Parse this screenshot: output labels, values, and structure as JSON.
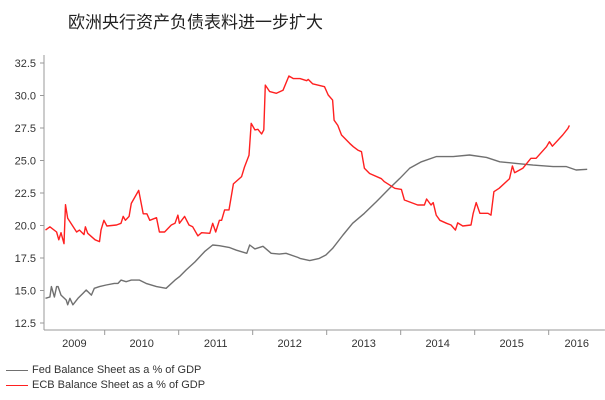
{
  "chart_data": {
    "type": "line",
    "title": "欧洲央行资产负债表料进一步扩大",
    "xlabel": "",
    "ylabel": "",
    "xlim": [
      2009.18,
      2016.76
    ],
    "ylim": [
      12.5,
      32.5
    ],
    "y_ticks": [
      "12.5",
      "15.0",
      "17.5",
      "20.0",
      "22.5",
      "25.0",
      "27.5",
      "30.0",
      "32.5"
    ],
    "x_tick_labels": [
      "2009",
      "2010",
      "2011",
      "2012",
      "2013",
      "2014",
      "2015",
      "2016"
    ],
    "grid": false,
    "legend_position": "bottom-left",
    "series": [
      {
        "name": "Fed Balance Sheet as a % of GDP",
        "color": "#707070",
        "points": [
          [
            2009.2,
            14.4
          ],
          [
            2009.26,
            14.5
          ],
          [
            2009.28,
            15.3
          ],
          [
            2009.32,
            14.5
          ],
          [
            2009.35,
            15.3
          ],
          [
            2009.37,
            15.3
          ],
          [
            2009.41,
            14.65
          ],
          [
            2009.48,
            14.27
          ],
          [
            2009.5,
            13.9
          ],
          [
            2009.53,
            14.4
          ],
          [
            2009.57,
            13.9
          ],
          [
            2009.64,
            14.4
          ],
          [
            2009.71,
            14.8
          ],
          [
            2009.75,
            15.04
          ],
          [
            2009.82,
            14.65
          ],
          [
            2009.86,
            15.17
          ],
          [
            2009.93,
            15.3
          ],
          [
            2010.02,
            15.42
          ],
          [
            2010.13,
            15.55
          ],
          [
            2010.18,
            15.55
          ],
          [
            2010.22,
            15.8
          ],
          [
            2010.29,
            15.68
          ],
          [
            2010.36,
            15.8
          ],
          [
            2010.47,
            15.8
          ],
          [
            2010.56,
            15.55
          ],
          [
            2010.7,
            15.3
          ],
          [
            2010.83,
            15.17
          ],
          [
            2010.95,
            15.8
          ],
          [
            2011.01,
            16.06
          ],
          [
            2011.1,
            16.58
          ],
          [
            2011.22,
            17.2
          ],
          [
            2011.35,
            17.99
          ],
          [
            2011.46,
            18.5
          ],
          [
            2011.55,
            18.45
          ],
          [
            2011.69,
            18.3
          ],
          [
            2011.78,
            18.1
          ],
          [
            2011.92,
            17.86
          ],
          [
            2011.96,
            18.5
          ],
          [
            2012.03,
            18.2
          ],
          [
            2012.14,
            18.4
          ],
          [
            2012.25,
            17.86
          ],
          [
            2012.36,
            17.8
          ],
          [
            2012.45,
            17.86
          ],
          [
            2012.61,
            17.55
          ],
          [
            2012.64,
            17.47
          ],
          [
            2012.77,
            17.3
          ],
          [
            2012.9,
            17.47
          ],
          [
            2012.99,
            17.73
          ],
          [
            2013.08,
            18.24
          ],
          [
            2013.22,
            19.27
          ],
          [
            2013.35,
            20.17
          ],
          [
            2013.51,
            20.94
          ],
          [
            2013.67,
            21.83
          ],
          [
            2013.85,
            22.86
          ],
          [
            2013.99,
            23.63
          ],
          [
            2014.12,
            24.4
          ],
          [
            2014.28,
            24.9
          ],
          [
            2014.48,
            25.3
          ],
          [
            2014.71,
            25.3
          ],
          [
            2014.93,
            25.42
          ],
          [
            2015.16,
            25.24
          ],
          [
            2015.34,
            24.9
          ],
          [
            2015.56,
            24.78
          ],
          [
            2015.79,
            24.65
          ],
          [
            2016.06,
            24.53
          ],
          [
            2016.24,
            24.53
          ],
          [
            2016.37,
            24.27
          ],
          [
            2016.52,
            24.32
          ]
        ]
      },
      {
        "name": "ECB Balance Sheet as a % of GDP",
        "color": "#ff2020",
        "points": [
          [
            2009.2,
            19.65
          ],
          [
            2009.26,
            19.9
          ],
          [
            2009.35,
            19.5
          ],
          [
            2009.38,
            18.9
          ],
          [
            2009.41,
            19.45
          ],
          [
            2009.45,
            18.6
          ],
          [
            2009.47,
            21.6
          ],
          [
            2009.5,
            20.55
          ],
          [
            2009.62,
            19.5
          ],
          [
            2009.66,
            19.65
          ],
          [
            2009.72,
            19.3
          ],
          [
            2009.74,
            19.9
          ],
          [
            2009.77,
            19.4
          ],
          [
            2009.87,
            18.9
          ],
          [
            2009.93,
            18.76
          ],
          [
            2009.95,
            19.65
          ],
          [
            2009.99,
            20.4
          ],
          [
            2010.03,
            19.96
          ],
          [
            2010.16,
            20.04
          ],
          [
            2010.22,
            20.17
          ],
          [
            2010.25,
            20.7
          ],
          [
            2010.28,
            20.4
          ],
          [
            2010.33,
            20.7
          ],
          [
            2010.36,
            21.7
          ],
          [
            2010.46,
            22.7
          ],
          [
            2010.52,
            20.9
          ],
          [
            2010.57,
            20.9
          ],
          [
            2010.61,
            20.4
          ],
          [
            2010.7,
            20.6
          ],
          [
            2010.74,
            19.5
          ],
          [
            2010.81,
            19.5
          ],
          [
            2010.9,
            20.04
          ],
          [
            2010.95,
            20.17
          ],
          [
            2010.99,
            20.8
          ],
          [
            2011.01,
            20.17
          ],
          [
            2011.08,
            20.7
          ],
          [
            2011.14,
            20.04
          ],
          [
            2011.19,
            19.9
          ],
          [
            2011.26,
            19.2
          ],
          [
            2011.31,
            19.45
          ],
          [
            2011.42,
            19.4
          ],
          [
            2011.46,
            20.17
          ],
          [
            2011.5,
            19.5
          ],
          [
            2011.55,
            20.4
          ],
          [
            2011.58,
            20.4
          ],
          [
            2011.62,
            21.2
          ],
          [
            2011.68,
            21.2
          ],
          [
            2011.74,
            23.2
          ],
          [
            2011.85,
            23.76
          ],
          [
            2011.89,
            24.5
          ],
          [
            2011.95,
            25.4
          ],
          [
            2011.98,
            27.86
          ],
          [
            2012.03,
            27.35
          ],
          [
            2012.07,
            27.4
          ],
          [
            2012.12,
            27.04
          ],
          [
            2012.15,
            27.35
          ],
          [
            2012.17,
            30.8
          ],
          [
            2012.23,
            30.3
          ],
          [
            2012.32,
            30.17
          ],
          [
            2012.41,
            30.4
          ],
          [
            2012.49,
            31.5
          ],
          [
            2012.55,
            31.3
          ],
          [
            2012.64,
            31.3
          ],
          [
            2012.73,
            31.14
          ],
          [
            2012.75,
            31.24
          ],
          [
            2012.81,
            30.9
          ],
          [
            2012.97,
            30.68
          ],
          [
            2013.02,
            30.04
          ],
          [
            2013.08,
            29.65
          ],
          [
            2013.1,
            28.1
          ],
          [
            2013.15,
            27.7
          ],
          [
            2013.2,
            26.96
          ],
          [
            2013.31,
            26.32
          ],
          [
            2013.36,
            26.06
          ],
          [
            2013.42,
            25.8
          ],
          [
            2013.47,
            25.68
          ],
          [
            2013.51,
            24.4
          ],
          [
            2013.58,
            24.0
          ],
          [
            2013.74,
            23.6
          ],
          [
            2013.78,
            23.37
          ],
          [
            2013.92,
            22.86
          ],
          [
            2014.01,
            22.78
          ],
          [
            2014.05,
            21.96
          ],
          [
            2014.23,
            21.58
          ],
          [
            2014.32,
            21.58
          ],
          [
            2014.35,
            22.04
          ],
          [
            2014.41,
            21.58
          ],
          [
            2014.44,
            21.76
          ],
          [
            2014.48,
            20.8
          ],
          [
            2014.53,
            20.4
          ],
          [
            2014.62,
            20.17
          ],
          [
            2014.68,
            20.04
          ],
          [
            2014.74,
            19.65
          ],
          [
            2014.77,
            20.2
          ],
          [
            2014.84,
            19.96
          ],
          [
            2014.95,
            20.04
          ],
          [
            2014.98,
            20.94
          ],
          [
            2015.02,
            21.76
          ],
          [
            2015.07,
            20.94
          ],
          [
            2015.18,
            20.94
          ],
          [
            2015.22,
            20.8
          ],
          [
            2015.26,
            22.6
          ],
          [
            2015.33,
            22.86
          ],
          [
            2015.47,
            23.6
          ],
          [
            2015.51,
            24.58
          ],
          [
            2015.54,
            24.06
          ],
          [
            2015.65,
            24.4
          ],
          [
            2015.76,
            25.17
          ],
          [
            2015.83,
            25.17
          ],
          [
            2015.97,
            26.06
          ],
          [
            2016.01,
            26.45
          ],
          [
            2016.05,
            26.1
          ],
          [
            2016.19,
            26.96
          ],
          [
            2016.26,
            27.47
          ],
          [
            2016.28,
            27.7
          ]
        ]
      }
    ]
  }
}
